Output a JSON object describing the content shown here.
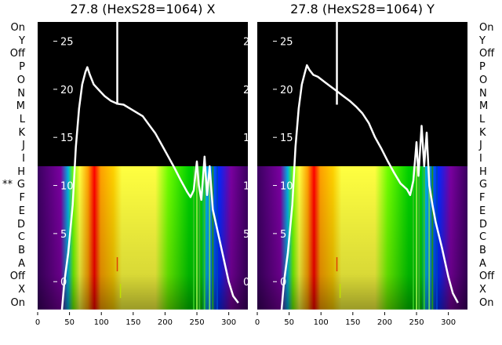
{
  "chart_data": {
    "type": "heatmap",
    "x_range": [
      0,
      330
    ],
    "x_ticks": [
      "0",
      "50",
      "100",
      "150",
      "200",
      "250",
      "300"
    ],
    "y_range": [
      -3,
      27
    ],
    "y_ticks": [
      "0",
      "5",
      "10",
      "15",
      "20",
      "25"
    ],
    "row_labels": [
      "On",
      "Y",
      "Off",
      "P",
      "O",
      "N",
      "M",
      "L",
      "K",
      "J",
      "I",
      "H",
      "G",
      "F",
      "E",
      "D",
      "C",
      "B",
      "A",
      "Off",
      "X",
      "On"
    ],
    "marker": {
      "symbol": "**",
      "row": "G"
    },
    "horizontal_line_y": -3.0,
    "panels": [
      {
        "title": "27.8 (HexS28=1064) X",
        "curve": [
          [
            38,
            -3
          ],
          [
            42,
            0
          ],
          [
            48,
            3
          ],
          [
            55,
            8
          ],
          [
            60,
            14
          ],
          [
            65,
            18
          ],
          [
            70,
            20.5
          ],
          [
            75,
            21.8
          ],
          [
            78,
            22.3
          ],
          [
            82,
            21.5
          ],
          [
            88,
            20.5
          ],
          [
            95,
            20
          ],
          [
            105,
            19.3
          ],
          [
            115,
            18.8
          ],
          [
            125,
            18.5
          ],
          [
            135,
            18.4
          ],
          [
            145,
            18
          ],
          [
            155,
            17.6
          ],
          [
            165,
            17.2
          ],
          [
            175,
            16.3
          ],
          [
            185,
            15.4
          ],
          [
            195,
            14.2
          ],
          [
            205,
            13
          ],
          [
            215,
            11.8
          ],
          [
            225,
            10.5
          ],
          [
            235,
            9.3
          ],
          [
            240,
            8.8
          ],
          [
            245,
            9.5
          ],
          [
            250,
            12.5
          ],
          [
            253,
            10
          ],
          [
            257,
            8.5
          ],
          [
            262,
            13
          ],
          [
            266,
            9
          ],
          [
            270,
            12
          ],
          [
            275,
            7.5
          ],
          [
            280,
            6
          ],
          [
            290,
            3
          ],
          [
            300,
            0
          ],
          [
            307,
            -1.5
          ],
          [
            315,
            -2.2
          ]
        ],
        "spike": {
          "x": 125,
          "top": 27
        }
      },
      {
        "title": "27.8 (HexS28=1064) Y",
        "curve": [
          [
            38,
            -3
          ],
          [
            42,
            0
          ],
          [
            48,
            3
          ],
          [
            55,
            8
          ],
          [
            60,
            14
          ],
          [
            65,
            18
          ],
          [
            70,
            20.5
          ],
          [
            75,
            21.8
          ],
          [
            78,
            22.5
          ],
          [
            82,
            22
          ],
          [
            88,
            21.5
          ],
          [
            95,
            21.3
          ],
          [
            105,
            20.8
          ],
          [
            115,
            20.3
          ],
          [
            125,
            19.8
          ],
          [
            135,
            19.3
          ],
          [
            145,
            18.8
          ],
          [
            155,
            18.2
          ],
          [
            165,
            17.5
          ],
          [
            175,
            16.5
          ],
          [
            185,
            15
          ],
          [
            195,
            13.8
          ],
          [
            205,
            12.5
          ],
          [
            215,
            11.3
          ],
          [
            225,
            10.2
          ],
          [
            235,
            9.6
          ],
          [
            240,
            9
          ],
          [
            245,
            10.5
          ],
          [
            250,
            14.5
          ],
          [
            253,
            11
          ],
          [
            258,
            16.2
          ],
          [
            262,
            12
          ],
          [
            266,
            15.5
          ],
          [
            270,
            10
          ],
          [
            275,
            8
          ],
          [
            280,
            6.2
          ],
          [
            290,
            3.5
          ],
          [
            300,
            0.5
          ],
          [
            307,
            -1.2
          ],
          [
            315,
            -2.2
          ]
        ],
        "spike": {
          "x": 125,
          "top": 27
        }
      }
    ],
    "colorscale": [
      "#3a0060",
      "#7a00a0",
      "#0028ff",
      "#00b4e0",
      "#00d000",
      "#70ff00",
      "#ffff40",
      "#ffd000",
      "#ffa000",
      "#ff0000"
    ]
  }
}
